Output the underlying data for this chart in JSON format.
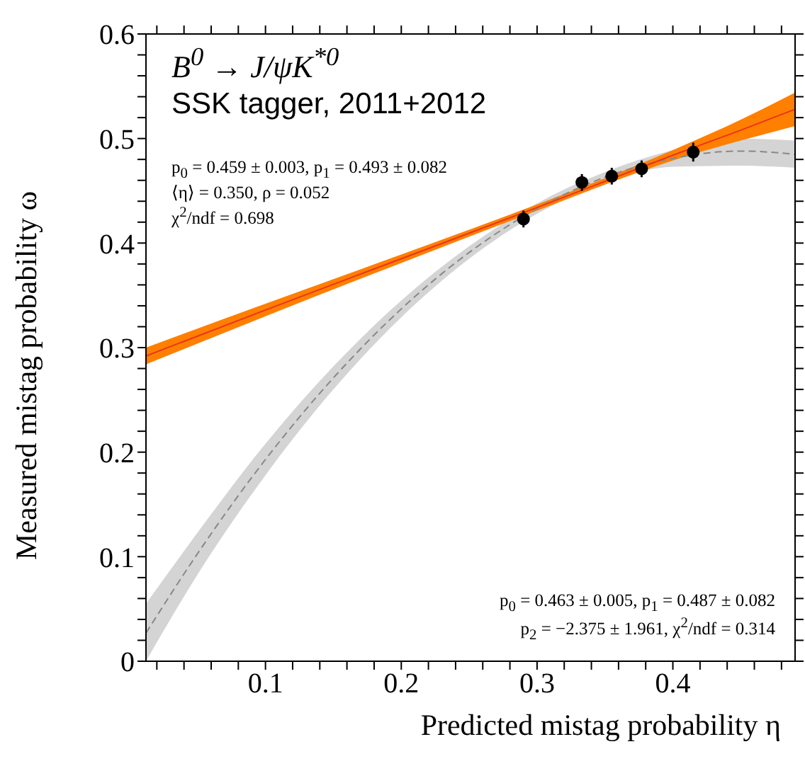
{
  "chart_data": {
    "type": "line",
    "title": "B$^{0}$ → J/ψK$^{*0}$",
    "subtitle": "SSK tagger, 2011+2012",
    "xlabel": "Predicted mistag probability η",
    "ylabel": "Measured mistag probability ω",
    "xlim": [
      0.012,
      0.49
    ],
    "ylim": [
      0,
      0.6
    ],
    "xticks": [
      {
        "value": 0.02,
        "label": null
      },
      {
        "value": 0.04,
        "label": null
      },
      {
        "value": 0.06,
        "label": null
      },
      {
        "value": 0.08,
        "label": null
      },
      0.1,
      {
        "value": 0.12,
        "label": null
      },
      {
        "value": 0.14,
        "label": null
      },
      {
        "value": 0.16,
        "label": null
      },
      {
        "value": 0.18,
        "label": null
      },
      0.2,
      {
        "value": 0.22,
        "label": null
      },
      {
        "value": 0.24,
        "label": null
      },
      {
        "value": 0.26,
        "label": null
      },
      {
        "value": 0.28,
        "label": null
      },
      0.3,
      {
        "value": 0.32,
        "label": null
      },
      {
        "value": 0.34,
        "label": null
      },
      {
        "value": 0.36,
        "label": null
      },
      {
        "value": 0.38,
        "label": null
      },
      0.4,
      {
        "value": 0.42,
        "label": null
      },
      {
        "value": 0.44,
        "label": null
      },
      {
        "value": 0.46,
        "label": null
      },
      {
        "value": 0.48,
        "label": null
      }
    ],
    "yticks": [
      0,
      {
        "value": 0.02,
        "label": null
      },
      {
        "value": 0.04,
        "label": null
      },
      {
        "value": 0.06,
        "label": null
      },
      {
        "value": 0.08,
        "label": null
      },
      0.1,
      {
        "value": 0.12,
        "label": null
      },
      {
        "value": 0.14,
        "label": null
      },
      {
        "value": 0.16,
        "label": null
      },
      {
        "value": 0.18,
        "label": null
      },
      0.2,
      {
        "value": 0.22,
        "label": null
      },
      {
        "value": 0.24,
        "label": null
      },
      {
        "value": 0.26,
        "label": null
      },
      {
        "value": 0.28,
        "label": null
      },
      0.3,
      {
        "value": 0.32,
        "label": null
      },
      {
        "value": 0.34,
        "label": null
      },
      {
        "value": 0.36,
        "label": null
      },
      {
        "value": 0.38,
        "label": null
      },
      0.4,
      {
        "value": 0.42,
        "label": null
      },
      {
        "value": 0.44,
        "label": null
      },
      {
        "value": 0.46,
        "label": null
      },
      {
        "value": 0.48,
        "label": null
      },
      0.5,
      {
        "value": 0.52,
        "label": null
      },
      {
        "value": 0.54,
        "label": null
      },
      {
        "value": 0.56,
        "label": null
      },
      {
        "value": 0.58,
        "label": null
      },
      0.6
    ],
    "grid": false,
    "legend": false,
    "annotations": [
      "p$_{0}$ = 0.459 ± 0.003,  p$_{1}$ = 0.493 ± 0.082",
      "⟨η⟩ = 0.350,  ρ = 0.052",
      "χ$^{2}$/ndf = 0.698",
      "p$_{0}$ = 0.463 ± 0.005,  p$_{1}$ = 0.487 ± 0.082",
      "p$_{2}$ = −2.375 ± 1.961,  χ$^{2}$/ndf = 0.314"
    ],
    "series": [
      {
        "type": "line",
        "color": "#888888",
        "line_style": "dashed",
        "x": [
          0.012,
          0.05,
          0.1,
          0.15,
          0.2,
          0.25,
          0.3,
          0.35,
          0.4,
          0.45,
          0.49
        ],
        "values": [
          0.027,
          0.103,
          0.193,
          0.271,
          0.337,
          0.391,
          0.433,
          0.463,
          0.481,
          0.488,
          0.485
        ],
        "lower": [
          0.0,
          0.083,
          0.178,
          0.26,
          0.329,
          0.385,
          0.428,
          0.458,
          0.473,
          0.474,
          0.472
        ],
        "upper": [
          0.055,
          0.123,
          0.208,
          0.282,
          0.345,
          0.397,
          0.438,
          0.468,
          0.489,
          0.5,
          0.498
        ]
      },
      {
        "type": "line",
        "color": "#e8351c",
        "line_style": "solid",
        "x": [
          0.012,
          0.1,
          0.2,
          0.3,
          0.35,
          0.4,
          0.45,
          0.49
        ],
        "values": [
          0.292,
          0.336,
          0.385,
          0.434,
          0.459,
          0.484,
          0.508,
          0.528
        ],
        "lower": [
          0.284,
          0.33,
          0.381,
          0.431,
          0.456,
          0.479,
          0.498,
          0.512
        ],
        "upper": [
          0.3,
          0.342,
          0.389,
          0.437,
          0.462,
          0.489,
          0.518,
          0.544
        ]
      },
      {
        "type": "scatter",
        "color": "#000000",
        "marker": "circle",
        "x": [
          0.29,
          0.333,
          0.355,
          0.377,
          0.415
        ],
        "values": [
          0.423,
          0.458,
          0.464,
          0.471,
          0.487
        ],
        "errors": [
          0.008,
          0.008,
          0.008,
          0.008,
          0.009
        ]
      }
    ]
  }
}
